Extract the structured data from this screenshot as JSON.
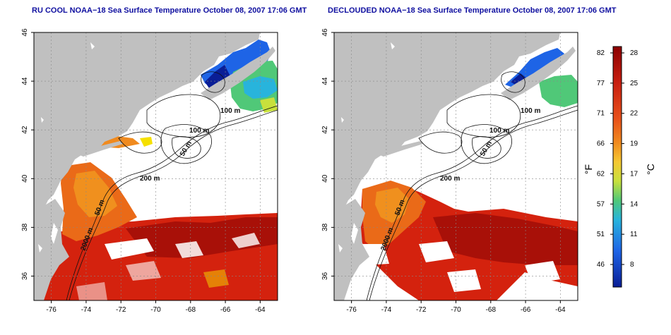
{
  "maps": [
    {
      "title": "RU COOL NOAA−18 Sea Surface Temperature October 08, 2007 17:06 GMT",
      "variant": "raw"
    },
    {
      "title": "DECLOUDED NOAA−18 Sea Surface Temperature October 08, 2007 17:06 GMT",
      "variant": "declouded"
    }
  ],
  "axes": {
    "lon_ticks": [
      "-76",
      "-74",
      "-72",
      "-70",
      "-68",
      "-66",
      "-64"
    ],
    "lat_ticks": [
      "36",
      "38",
      "40",
      "42",
      "44",
      "46"
    ],
    "lon_range": [
      -77,
      -63
    ],
    "lat_range": [
      35,
      46
    ],
    "grid": "dotted"
  },
  "contours": [
    "200 m",
    "100 m",
    "50 m",
    "100 m",
    "50 m",
    "2000 m"
  ],
  "colorbar": {
    "f_ticks": [
      "82",
      "77",
      "71",
      "66",
      "62",
      "57",
      "51",
      "46"
    ],
    "c_ticks": [
      "28",
      "25",
      "22",
      "19",
      "17",
      "14",
      "11",
      "8"
    ],
    "f_label": "°F",
    "c_label": "°C",
    "colors": [
      "#8b0000",
      "#c81e10",
      "#e8501a",
      "#f08a1e",
      "#f5c832",
      "#c8e03c",
      "#50c878",
      "#28b4dc",
      "#1e64e6",
      "#0a1e96"
    ]
  },
  "land_color": "#c0c0c0"
}
